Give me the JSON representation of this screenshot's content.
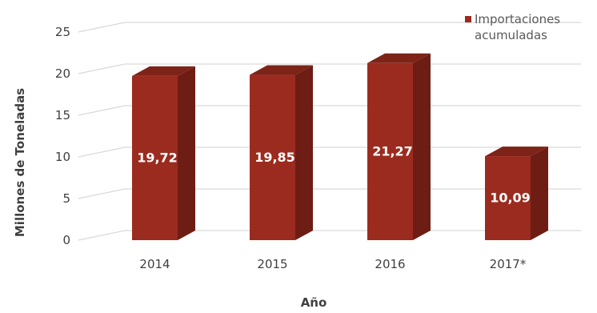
{
  "colors": {
    "bar_front": "#9b2b1f",
    "bar_side": "#6e1d14",
    "bar_top": "#7d2318",
    "grid": "#d9d9d9",
    "text": "#404040"
  },
  "chart_data": {
    "type": "bar",
    "categories": [
      "2014",
      "2015",
      "2016",
      "2017*"
    ],
    "values": [
      19.72,
      19.85,
      21.27,
      10.09
    ],
    "data_labels": [
      "19,72",
      "19,85",
      "21,27",
      "10,09"
    ],
    "series": [
      {
        "name": "Importaciones acumuladas",
        "values": [
          19.72,
          19.85,
          21.27,
          10.09
        ]
      }
    ],
    "legend": {
      "line1": "Importaciones",
      "line2": "acumuladas",
      "placement": "top-right"
    },
    "xlabel": "Año",
    "ylabel": "Millones de Toneladas",
    "ylim": [
      0,
      25
    ],
    "yticks": [
      0,
      5,
      10,
      15,
      20,
      25
    ],
    "grid": true,
    "style": "3d-bar"
  }
}
